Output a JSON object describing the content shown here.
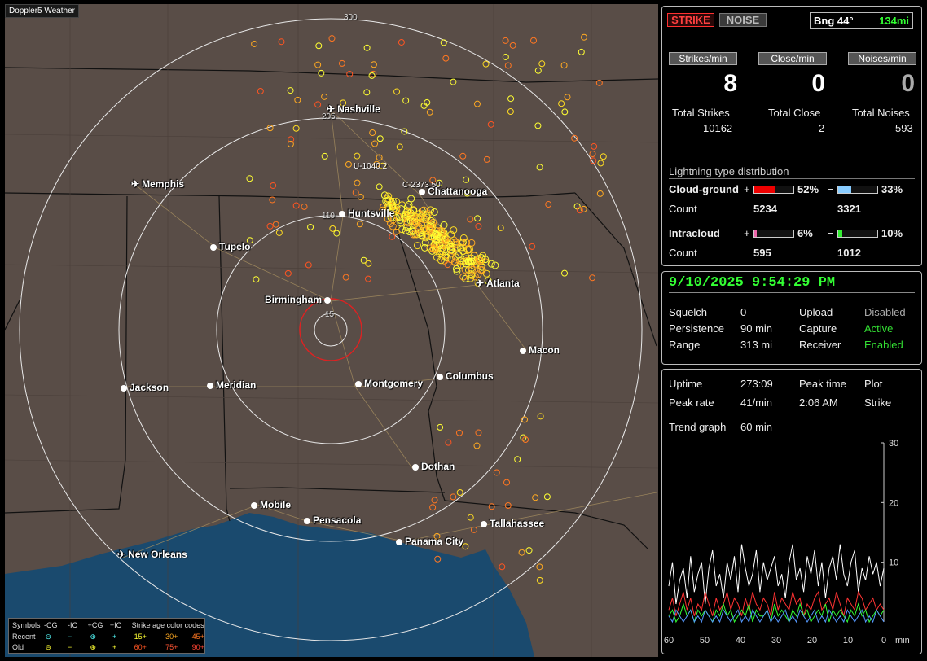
{
  "map": {
    "app_label": "Doppler5 Weather",
    "ring_labels": [
      "300",
      "205",
      "110",
      "15"
    ],
    "track_labels": [
      "U-1040 2",
      "C-2373 50"
    ],
    "cities": [
      {
        "name": "Nashville",
        "icon": "airport-icon"
      },
      {
        "name": "Memphis",
        "icon": "airport-icon"
      },
      {
        "name": "Chattanooga",
        "icon": "city-dot"
      },
      {
        "name": "Huntsville",
        "icon": "city-dot"
      },
      {
        "name": "Tupelo",
        "icon": "city-dot"
      },
      {
        "name": "Atlanta",
        "icon": "airport-icon"
      },
      {
        "name": "Birmingham",
        "icon": "city-dot"
      },
      {
        "name": "Macon",
        "icon": "city-dot"
      },
      {
        "name": "Montgomery",
        "icon": "city-dot"
      },
      {
        "name": "Columbus",
        "icon": "city-dot"
      },
      {
        "name": "Jackson",
        "icon": "city-dot"
      },
      {
        "name": "Meridian",
        "icon": "city-dot"
      },
      {
        "name": "Dothan",
        "icon": "city-dot"
      },
      {
        "name": "Mobile",
        "icon": "city-dot"
      },
      {
        "name": "Pensacola",
        "icon": "city-dot"
      },
      {
        "name": "Tallahassee",
        "icon": "city-dot"
      },
      {
        "name": "Panama City",
        "icon": "city-dot"
      },
      {
        "name": "New Orleans",
        "icon": "airport-icon"
      }
    ],
    "legend": {
      "symbols_label": "Symbols",
      "cols": [
        "-CG",
        "-IC",
        "+CG",
        "+IC"
      ],
      "age_label": "Strike age color codes",
      "recent_label": "Recent",
      "old_label": "Old",
      "recent_ages": [
        "15+",
        "30+",
        "45+"
      ],
      "old_ages": [
        "60+",
        "75+",
        "90+"
      ],
      "age_colors": [
        "#ffff33",
        "#ffaa22",
        "#ff7722",
        "#ff5522",
        "#ff5533",
        "#ff4433"
      ]
    }
  },
  "status": {
    "strike_label": "STRIKE",
    "noise_label": "NOISE",
    "bearing": "Bng 44°",
    "distance": "134mi",
    "headers": [
      "Strikes/min",
      "Close/min",
      "Noises/min"
    ],
    "rates": [
      "8",
      "0",
      "0"
    ],
    "total_labels": [
      "Total Strikes",
      "Total Close",
      "Total Noises"
    ],
    "totals": [
      "10162",
      "2",
      "593"
    ]
  },
  "distribution": {
    "title": "Lightning type distribution",
    "cg_label": "Cloud-ground",
    "ic_label": "Intracloud",
    "count_label": "Count",
    "cg_pos_pct": "52%",
    "cg_neg_pct": "33%",
    "cg_pos_count": "5234",
    "cg_neg_count": "3321",
    "ic_pos_pct": "6%",
    "ic_neg_pct": "10%",
    "ic_pos_count": "595",
    "ic_neg_count": "1012",
    "cg_pos_fill": 0.52,
    "cg_neg_fill": 0.33,
    "ic_pos_fill": 0.06,
    "ic_neg_fill": 0.1,
    "plus": "+",
    "minus": "−"
  },
  "settings": {
    "datetime": "9/10/2025 9:54:29 PM",
    "squelch_label": "Squelch",
    "squelch": "0",
    "persistence_label": "Persistence",
    "persistence": "90 min",
    "range_label": "Range",
    "range": "313 mi",
    "upload_label": "Upload",
    "upload": "Disabled",
    "capture_label": "Capture",
    "capture": "Active",
    "receiver_label": "Receiver",
    "receiver": "Enabled"
  },
  "stats": {
    "uptime_label": "Uptime",
    "uptime": "273:09",
    "peak_time_label": "Peak time",
    "peak_time": "2:06 AM",
    "plot_label": "Plot",
    "plot": "Strike",
    "peak_rate_label": "Peak rate",
    "peak_rate": "41/min",
    "trend_label": "Trend graph",
    "trend": "60 min"
  },
  "chart_data": {
    "type": "line",
    "x_ticks": [
      "60",
      "50",
      "40",
      "30",
      "20",
      "10",
      "0"
    ],
    "x_unit": "min",
    "y_ticks": [
      "30",
      "20",
      "10"
    ],
    "ylim": [
      0,
      30
    ],
    "xlim": [
      60,
      0
    ],
    "series": [
      {
        "color": "#ffffff",
        "values": [
          6,
          10,
          3,
          7,
          9,
          4,
          11,
          5,
          8,
          10,
          3,
          9,
          12,
          6,
          8,
          4,
          10,
          7,
          11,
          5,
          13,
          9,
          6,
          8,
          12,
          5,
          10,
          7,
          9,
          11,
          6,
          8,
          4,
          10,
          13,
          7,
          9,
          5,
          11,
          8,
          12,
          6,
          10,
          4,
          9,
          11,
          7,
          13,
          8,
          6,
          10,
          12,
          5,
          9,
          7,
          11,
          8,
          10,
          6,
          9
        ]
      },
      {
        "color": "#ff3333",
        "values": [
          2,
          4,
          1,
          3,
          5,
          2,
          4,
          1,
          3,
          2,
          5,
          3,
          1,
          4,
          2,
          3,
          5,
          2,
          4,
          3,
          1,
          4,
          2,
          5,
          3,
          2,
          4,
          3,
          1,
          5,
          2,
          4,
          3,
          2,
          5,
          3,
          4,
          1,
          3,
          2,
          4,
          5,
          2,
          3,
          4,
          2,
          5,
          3,
          1,
          4,
          3,
          2,
          5,
          4,
          2,
          3,
          4,
          2,
          3,
          2
        ]
      },
      {
        "color": "#33ff33",
        "values": [
          1,
          2,
          0,
          1,
          3,
          1,
          2,
          0,
          2,
          1,
          2,
          1,
          0,
          2,
          1,
          3,
          1,
          2,
          0,
          1,
          2,
          1,
          3,
          0,
          2,
          1,
          1,
          2,
          0,
          3,
          1,
          2,
          1,
          0,
          2,
          1,
          3,
          1,
          2,
          0,
          1,
          2,
          1,
          3,
          0,
          2,
          1,
          2,
          1,
          0,
          2,
          1,
          3,
          1,
          2,
          0,
          1,
          2,
          1,
          2
        ]
      },
      {
        "color": "#5599ff",
        "values": [
          1,
          0,
          2,
          1,
          0,
          1,
          2,
          0,
          1,
          0,
          2,
          1,
          0,
          1,
          0,
          2,
          1,
          0,
          1,
          2,
          0,
          1,
          0,
          2,
          1,
          0,
          1,
          2,
          0,
          1,
          0,
          1,
          2,
          0,
          1,
          0,
          2,
          1,
          0,
          1,
          2,
          0,
          1,
          0,
          2,
          1,
          0,
          1,
          0,
          2,
          1,
          0,
          1,
          2,
          0,
          1,
          0,
          2,
          1,
          0
        ]
      }
    ]
  },
  "colors": {
    "accent_green": "#33ff33",
    "strike_red": "#ff3030",
    "map_bg": "#594d47",
    "water": "#1a4a6e"
  }
}
